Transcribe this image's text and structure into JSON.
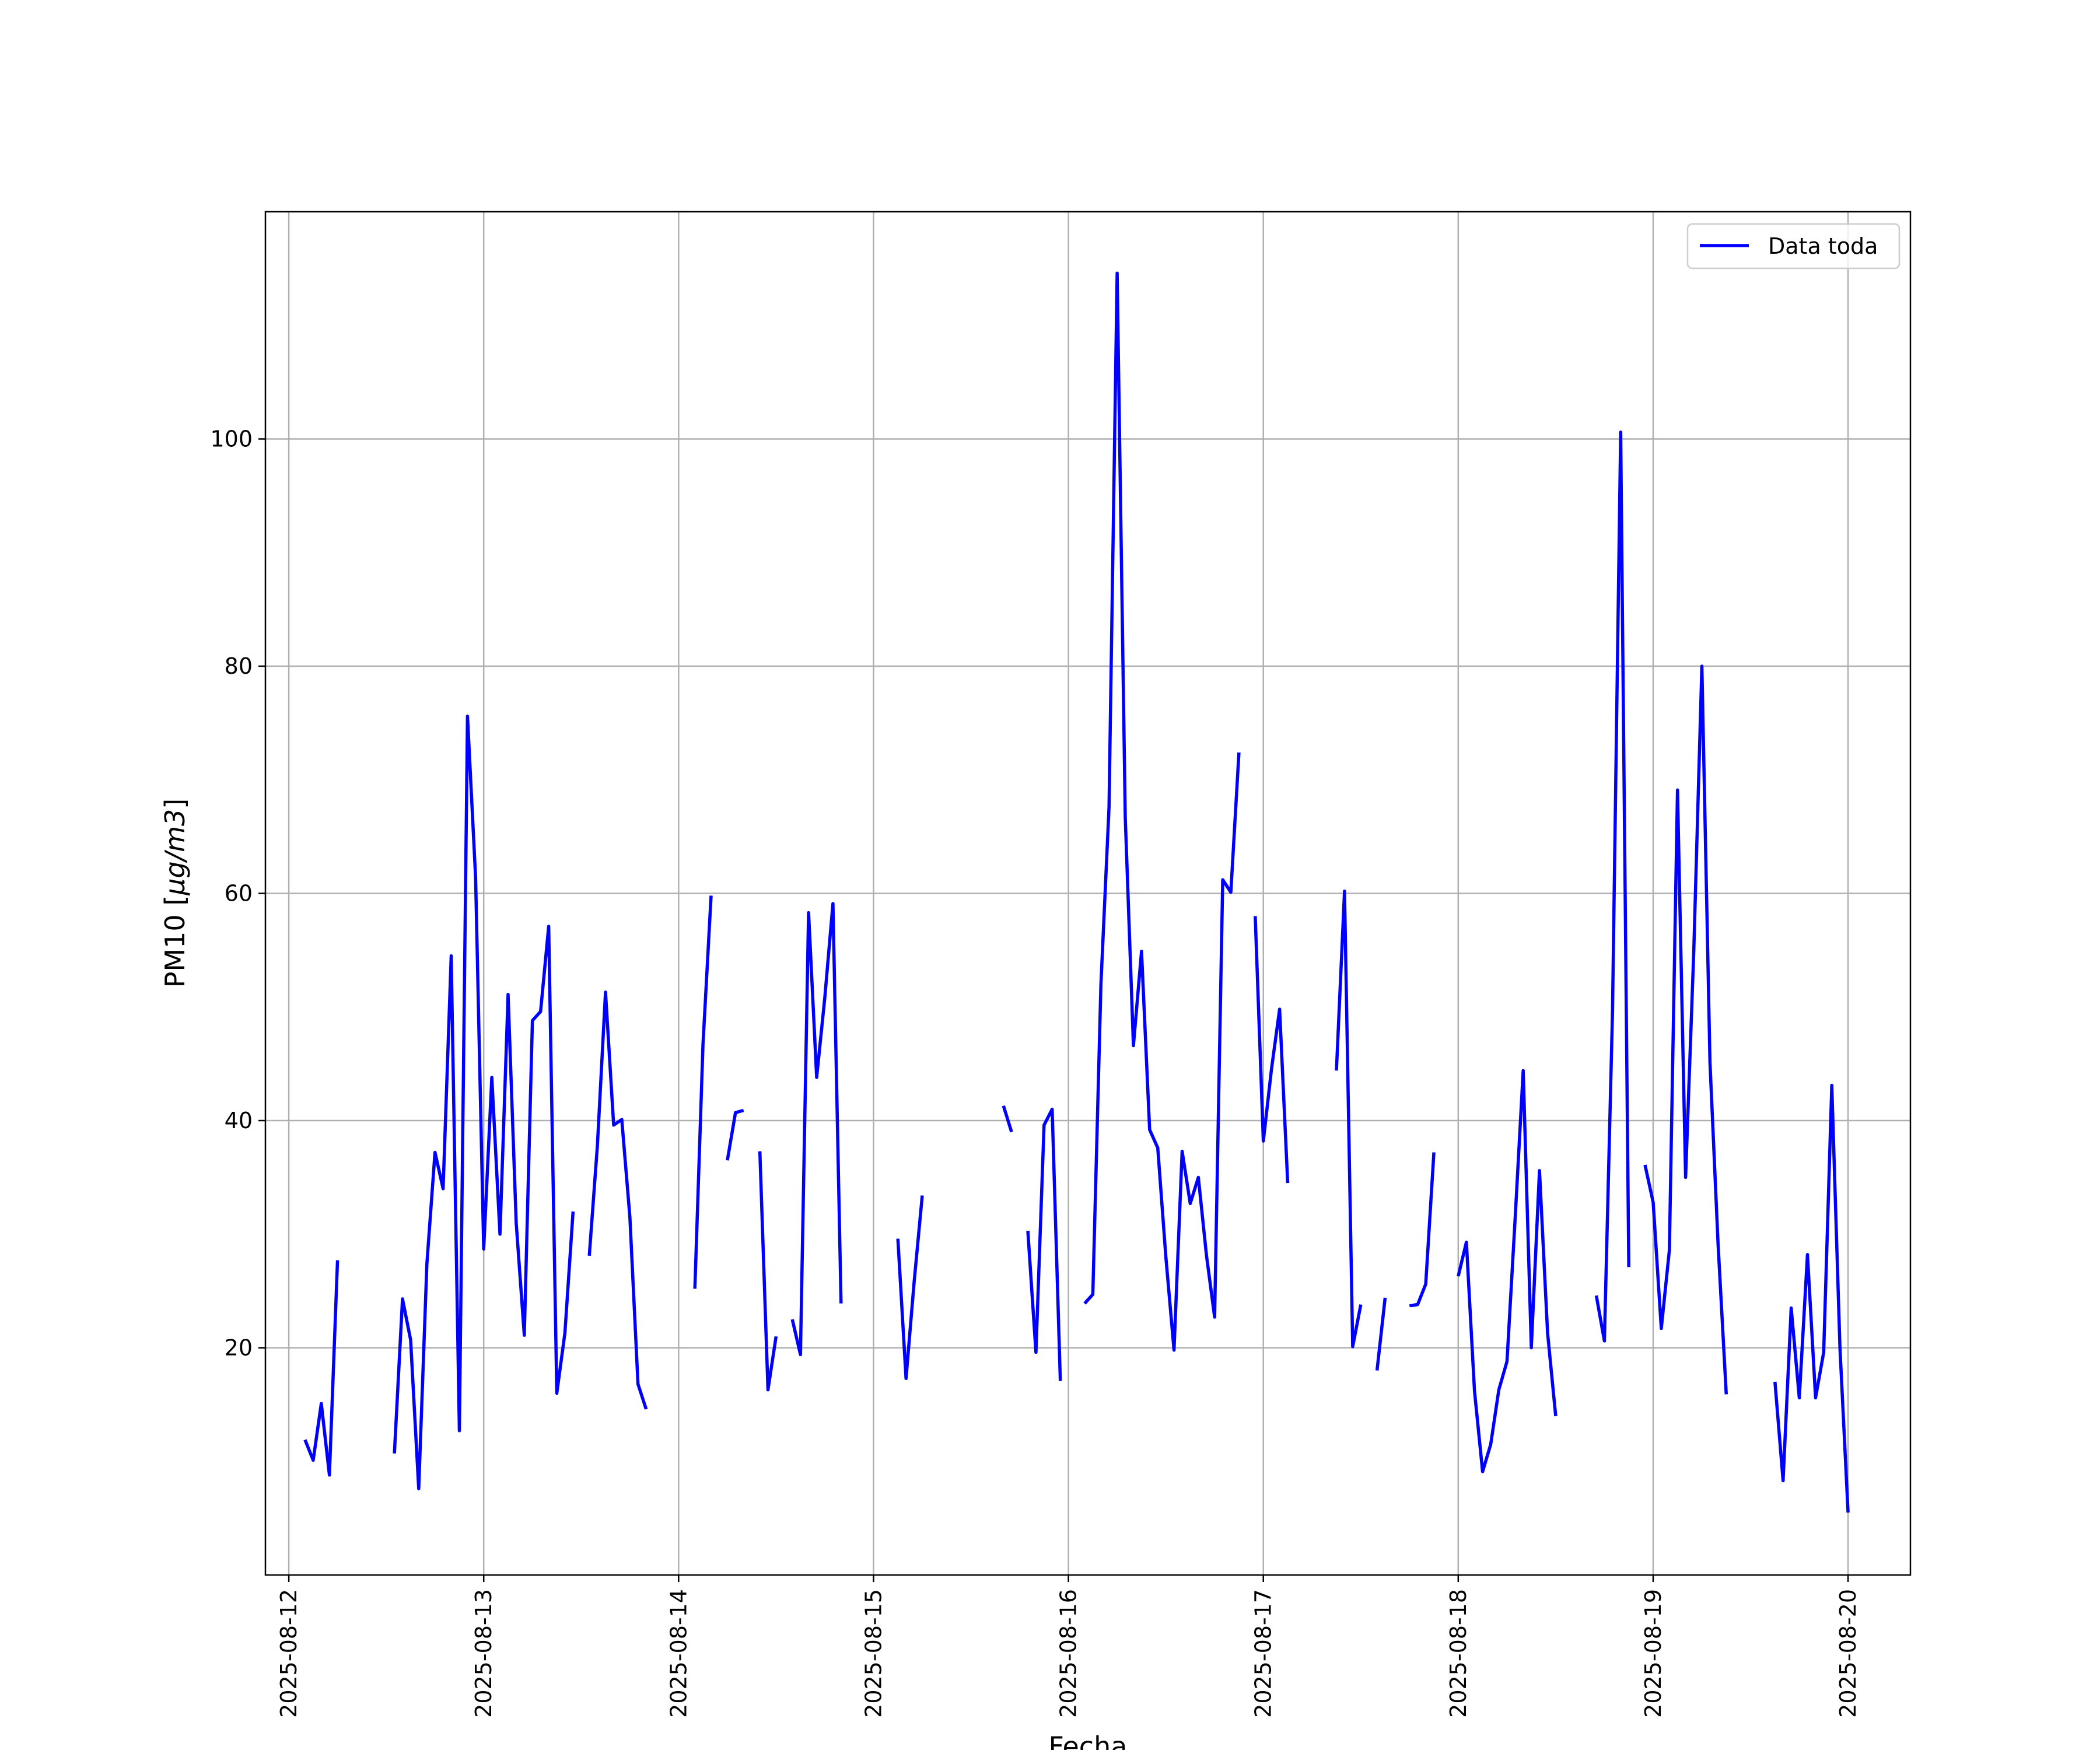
{
  "chart_data": {
    "type": "line",
    "title": "",
    "xlabel": "Fecha",
    "ylabel": "PM10 [μg/m3]",
    "ylabel_parts": {
      "prefix": "PM10 [",
      "unit": "μg/m3",
      "suffix": "]"
    },
    "x_start_date": "2025-08-12",
    "xlim": [
      -0.12,
      8.32
    ],
    "ylim": [
      0,
      120
    ],
    "xticks": [
      "2025-08-12",
      "2025-08-13",
      "2025-08-14",
      "2025-08-15",
      "2025-08-16",
      "2025-08-17",
      "2025-08-18",
      "2025-08-19",
      "2025-08-20"
    ],
    "yticks": [
      20,
      40,
      60,
      80,
      100
    ],
    "grid": true,
    "legend_position": "top-right",
    "series": [
      {
        "name": "Data toda",
        "color": "#0000ff",
        "segments": [
          [
            [
              "2025-08-12 02:00",
              11.9
            ],
            [
              "2025-08-12 03:00",
              10.1
            ],
            [
              "2025-08-12 04:00",
              15.1
            ],
            [
              "2025-08-12 05:00",
              8.8
            ],
            [
              "2025-08-12 06:00",
              27.7
            ]
          ],
          [
            [
              "2025-08-12 13:00",
              10.7
            ],
            [
              "2025-08-12 14:00",
              24.3
            ],
            [
              "2025-08-12 15:00",
              20.7
            ],
            [
              "2025-08-12 16:00",
              7.6
            ],
            [
              "2025-08-12 17:00",
              27.4
            ],
            [
              "2025-08-12 18:00",
              37.2
            ],
            [
              "2025-08-12 19:00",
              34.0
            ],
            [
              "2025-08-12 20:00",
              54.5
            ],
            [
              "2025-08-12 21:00",
              12.7
            ],
            [
              "2025-08-12 22:00",
              75.6
            ],
            [
              "2025-08-12 23:00",
              61.4
            ],
            [
              "2025-08-13 00:00",
              28.7
            ],
            [
              "2025-08-13 01:00",
              43.8
            ],
            [
              "2025-08-13 02:00",
              30.0
            ],
            [
              "2025-08-13 03:00",
              51.1
            ],
            [
              "2025-08-13 04:00",
              31.0
            ],
            [
              "2025-08-13 05:00",
              21.1
            ],
            [
              "2025-08-13 06:00",
              48.8
            ],
            [
              "2025-08-13 07:00",
              49.6
            ],
            [
              "2025-08-13 08:00",
              57.1
            ],
            [
              "2025-08-13 09:00",
              16.0
            ],
            [
              "2025-08-13 10:00",
              21.3
            ],
            [
              "2025-08-13 11:00",
              32.0
            ]
          ],
          [
            [
              "2025-08-13 13:00",
              28.1
            ],
            [
              "2025-08-13 14:00",
              37.8
            ],
            [
              "2025-08-13 15:00",
              51.3
            ],
            [
              "2025-08-13 16:00",
              39.6
            ],
            [
              "2025-08-13 17:00",
              40.1
            ],
            [
              "2025-08-13 18:00",
              31.5
            ],
            [
              "2025-08-13 19:00",
              16.8
            ],
            [
              "2025-08-13 20:00",
              14.6
            ]
          ],
          [
            [
              "2025-08-14 02:00",
              25.2
            ],
            [
              "2025-08-14 03:00",
              46.7
            ],
            [
              "2025-08-14 04:00",
              59.8
            ]
          ],
          [
            [
              "2025-08-14 06:00",
              36.5
            ],
            [
              "2025-08-14 07:00",
              40.7
            ],
            [
              "2025-08-14 08:00",
              40.9
            ]
          ],
          [
            [
              "2025-08-14 10:00",
              37.3
            ],
            [
              "2025-08-14 11:00",
              16.3
            ],
            [
              "2025-08-14 12:00",
              21.0
            ]
          ],
          [
            [
              "2025-08-14 14:00",
              22.5
            ],
            [
              "2025-08-14 15:00",
              19.4
            ],
            [
              "2025-08-14 16:00",
              58.3
            ],
            [
              "2025-08-14 17:00",
              43.8
            ],
            [
              "2025-08-14 18:00",
              50.8
            ],
            [
              "2025-08-14 19:00",
              59.1
            ],
            [
              "2025-08-14 20:00",
              23.9
            ]
          ],
          [
            [
              "2025-08-15 03:00",
              29.6
            ],
            [
              "2025-08-15 04:00",
              17.3
            ],
            [
              "2025-08-15 05:00",
              25.8
            ],
            [
              "2025-08-15 06:00",
              33.4
            ]
          ],
          [
            [
              "2025-08-15 16:00",
              41.3
            ],
            [
              "2025-08-15 17:00",
              39.0
            ]
          ],
          [
            [
              "2025-08-15 19:00",
              30.3
            ],
            [
              "2025-08-15 20:00",
              19.6
            ],
            [
              "2025-08-15 21:00",
              39.6
            ],
            [
              "2025-08-15 22:00",
              41.0
            ],
            [
              "2025-08-15 23:00",
              17.1
            ]
          ],
          [
            [
              "2025-08-16 02:00",
              23.9
            ],
            [
              "2025-08-16 03:00",
              24.7
            ],
            [
              "2025-08-16 04:00",
              52.0
            ],
            [
              "2025-08-16 05:00",
              67.6
            ],
            [
              "2025-08-16 06:00",
              114.6
            ],
            [
              "2025-08-16 07:00",
              66.7
            ],
            [
              "2025-08-16 08:00",
              46.6
            ],
            [
              "2025-08-16 09:00",
              54.9
            ],
            [
              "2025-08-16 10:00",
              39.2
            ],
            [
              "2025-08-16 11:00",
              37.6
            ],
            [
              "2025-08-16 12:00",
              28.0
            ],
            [
              "2025-08-16 13:00",
              19.8
            ],
            [
              "2025-08-16 14:00",
              37.3
            ],
            [
              "2025-08-16 15:00",
              32.7
            ],
            [
              "2025-08-16 16:00",
              35.0
            ],
            [
              "2025-08-16 17:00",
              28.1
            ],
            [
              "2025-08-16 18:00",
              22.7
            ],
            [
              "2025-08-16 19:00",
              61.2
            ],
            [
              "2025-08-16 20:00",
              60.1
            ],
            [
              "2025-08-16 21:00",
              72.4
            ]
          ],
          [
            [
              "2025-08-16 23:00",
              58.0
            ],
            [
              "2025-08-17 00:00",
              38.2
            ],
            [
              "2025-08-17 01:00",
              44.5
            ],
            [
              "2025-08-17 02:00",
              49.8
            ],
            [
              "2025-08-17 03:00",
              34.5
            ]
          ],
          [
            [
              "2025-08-17 09:00",
              44.4
            ],
            [
              "2025-08-17 10:00",
              60.2
            ],
            [
              "2025-08-17 11:00",
              20.1
            ],
            [
              "2025-08-17 12:00",
              23.8
            ]
          ],
          [
            [
              "2025-08-17 14:00",
              18.0
            ],
            [
              "2025-08-17 15:00",
              24.4
            ]
          ],
          [
            [
              "2025-08-17 18:00",
              23.7
            ],
            [
              "2025-08-17 19:00",
              23.8
            ],
            [
              "2025-08-17 20:00",
              25.6
            ],
            [
              "2025-08-17 21:00",
              37.2
            ]
          ],
          [
            [
              "2025-08-18 00:00",
              26.3
            ],
            [
              "2025-08-18 01:00",
              29.3
            ],
            [
              "2025-08-18 02:00",
              16.2
            ],
            [
              "2025-08-18 03:00",
              9.1
            ],
            [
              "2025-08-18 04:00",
              11.5
            ],
            [
              "2025-08-18 05:00",
              16.3
            ],
            [
              "2025-08-18 06:00",
              18.8
            ],
            [
              "2025-08-18 07:00",
              31.3
            ],
            [
              "2025-08-18 08:00",
              44.4
            ],
            [
              "2025-08-18 09:00",
              20.0
            ],
            [
              "2025-08-18 10:00",
              35.6
            ],
            [
              "2025-08-18 11:00",
              21.3
            ],
            [
              "2025-08-18 12:00",
              14.0
            ]
          ],
          [
            [
              "2025-08-18 17:00",
              24.6
            ],
            [
              "2025-08-18 18:00",
              20.6
            ],
            [
              "2025-08-18 19:00",
              49.6
            ],
            [
              "2025-08-18 20:00",
              100.6
            ],
            [
              "2025-08-18 21:00",
              27.1
            ]
          ],
          [
            [
              "2025-08-18 23:00",
              36.1
            ],
            [
              "2025-08-19 00:00",
              32.8
            ],
            [
              "2025-08-19 01:00",
              21.7
            ],
            [
              "2025-08-19 02:00",
              28.6
            ],
            [
              "2025-08-19 03:00",
              69.1
            ],
            [
              "2025-08-19 04:00",
              35.0
            ],
            [
              "2025-08-19 05:00",
              54.9
            ],
            [
              "2025-08-19 06:00",
              80.0
            ],
            [
              "2025-08-19 07:00",
              45.1
            ],
            [
              "2025-08-19 08:00",
              29.1
            ],
            [
              "2025-08-19 09:00",
              15.9
            ]
          ],
          [
            [
              "2025-08-19 15:00",
              17.0
            ],
            [
              "2025-08-19 16:00",
              8.3
            ],
            [
              "2025-08-19 17:00",
              23.5
            ],
            [
              "2025-08-19 18:00",
              15.6
            ],
            [
              "2025-08-19 19:00",
              28.2
            ],
            [
              "2025-08-19 20:00",
              15.6
            ],
            [
              "2025-08-19 21:00",
              19.6
            ],
            [
              "2025-08-19 22:00",
              43.1
            ],
            [
              "2025-08-19 23:00",
              20.0
            ],
            [
              "2025-08-20 00:00",
              5.5
            ]
          ]
        ]
      }
    ]
  }
}
